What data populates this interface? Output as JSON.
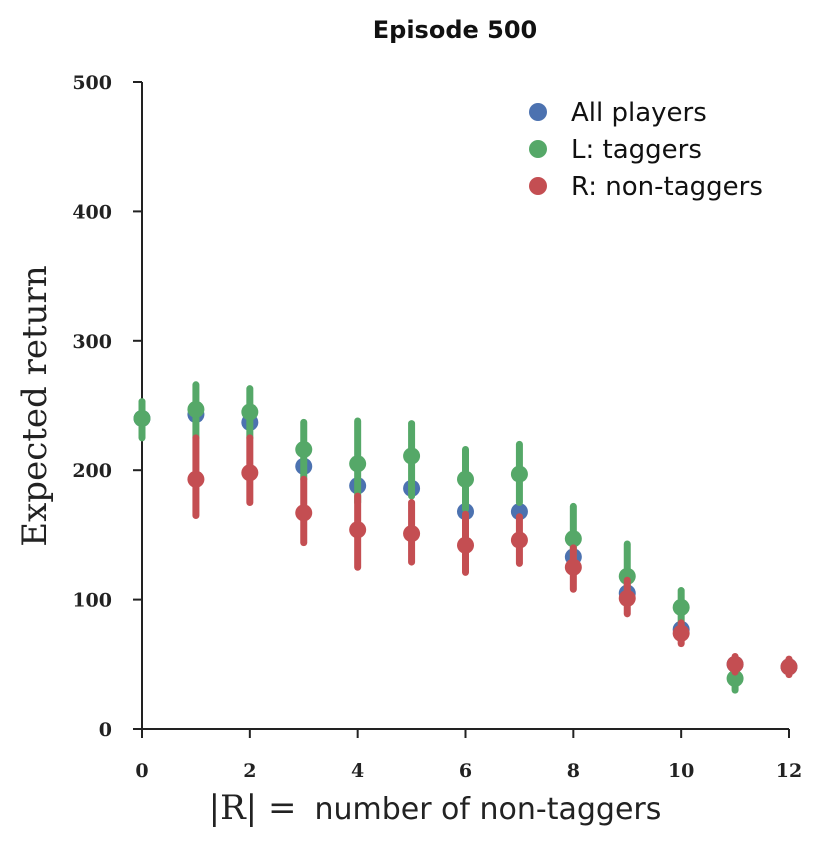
{
  "chart_data": {
    "type": "scatter",
    "title": "Episode 500",
    "ylabel": "Expected return",
    "xlabel_math": "|R| =",
    "xlabel_text": "number of non-taggers",
    "xlim": [
      0,
      12
    ],
    "ylim": [
      0,
      500
    ],
    "xticks": [
      0,
      2,
      4,
      6,
      8,
      10,
      12
    ],
    "yticks": [
      0,
      100,
      200,
      300,
      400,
      500
    ],
    "grid": false,
    "legend_position": "top-right",
    "series": [
      {
        "name": "All players",
        "color": "#4C72B0",
        "points": [
          {
            "x": 0,
            "y": 240,
            "lo": 240,
            "hi": 240
          },
          {
            "x": 1,
            "y": 243,
            "lo": 243,
            "hi": 243
          },
          {
            "x": 2,
            "y": 237,
            "lo": 237,
            "hi": 237
          },
          {
            "x": 3,
            "y": 203,
            "lo": 203,
            "hi": 203
          },
          {
            "x": 4,
            "y": 188,
            "lo": 188,
            "hi": 188
          },
          {
            "x": 5,
            "y": 186,
            "lo": 186,
            "hi": 186
          },
          {
            "x": 6,
            "y": 168,
            "lo": 168,
            "hi": 168
          },
          {
            "x": 7,
            "y": 168,
            "lo": 168,
            "hi": 168
          },
          {
            "x": 8,
            "y": 133,
            "lo": 133,
            "hi": 133
          },
          {
            "x": 9,
            "y": 105,
            "lo": 105,
            "hi": 105
          },
          {
            "x": 10,
            "y": 77,
            "lo": 77,
            "hi": 77
          },
          {
            "x": 11,
            "y": 50,
            "lo": 50,
            "hi": 50
          },
          {
            "x": 12,
            "y": 48,
            "lo": 48,
            "hi": 48
          }
        ]
      },
      {
        "name": "L: taggers",
        "color": "#55A868",
        "points": [
          {
            "x": 0,
            "y": 240,
            "lo": 225,
            "hi": 253
          },
          {
            "x": 1,
            "y": 247,
            "lo": 225,
            "hi": 266
          },
          {
            "x": 2,
            "y": 245,
            "lo": 225,
            "hi": 263
          },
          {
            "x": 3,
            "y": 216,
            "lo": 193,
            "hi": 237
          },
          {
            "x": 4,
            "y": 205,
            "lo": 175,
            "hi": 238
          },
          {
            "x": 5,
            "y": 211,
            "lo": 180,
            "hi": 236
          },
          {
            "x": 6,
            "y": 193,
            "lo": 170,
            "hi": 216
          },
          {
            "x": 7,
            "y": 197,
            "lo": 175,
            "hi": 220
          },
          {
            "x": 8,
            "y": 147,
            "lo": 128,
            "hi": 172
          },
          {
            "x": 9,
            "y": 118,
            "lo": 98,
            "hi": 143
          },
          {
            "x": 10,
            "y": 94,
            "lo": 80,
            "hi": 107
          },
          {
            "x": 11,
            "y": 39,
            "lo": 30,
            "hi": 48
          }
        ]
      },
      {
        "name": "R: non-taggers",
        "color": "#C44E52",
        "points": [
          {
            "x": 1,
            "y": 193,
            "lo": 165,
            "hi": 225
          },
          {
            "x": 2,
            "y": 198,
            "lo": 175,
            "hi": 225
          },
          {
            "x": 3,
            "y": 167,
            "lo": 144,
            "hi": 193
          },
          {
            "x": 4,
            "y": 154,
            "lo": 125,
            "hi": 180
          },
          {
            "x": 5,
            "y": 151,
            "lo": 129,
            "hi": 175
          },
          {
            "x": 6,
            "y": 142,
            "lo": 121,
            "hi": 166
          },
          {
            "x": 7,
            "y": 146,
            "lo": 128,
            "hi": 164
          },
          {
            "x": 8,
            "y": 125,
            "lo": 108,
            "hi": 140
          },
          {
            "x": 9,
            "y": 101,
            "lo": 89,
            "hi": 115
          },
          {
            "x": 10,
            "y": 74,
            "lo": 66,
            "hi": 82
          },
          {
            "x": 11,
            "y": 50,
            "lo": 44,
            "hi": 56
          },
          {
            "x": 12,
            "y": 48,
            "lo": 42,
            "hi": 54
          }
        ]
      }
    ]
  }
}
